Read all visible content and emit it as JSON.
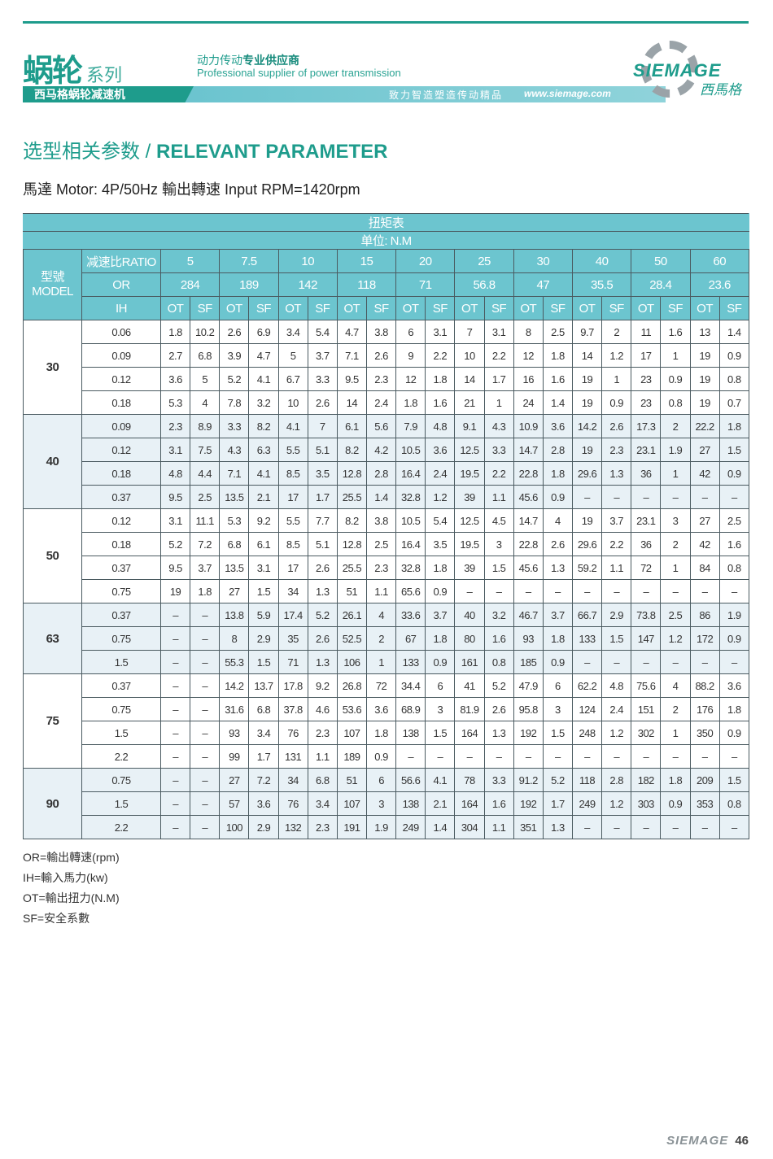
{
  "header": {
    "series_main": "蜗轮",
    "series_sub": "系列",
    "tagline_a": "动力传动",
    "tagline_b": "专业供应商",
    "tagline_en": "Professional supplier of power transmission",
    "product": "西马格蜗轮减速机",
    "slogan": "致力智造塑造传动精品",
    "website": "www.siemage.com",
    "brand": "SIEMAGE",
    "brand_cn": "西馬格",
    "accent": "#1e9c8c"
  },
  "title": {
    "cn": "选型相关参数 / ",
    "en": "RELEVANT PARAMETER"
  },
  "motor": "馬達 Motor: 4P/50Hz  輸出轉速 Input RPM=1420rpm",
  "table": {
    "caption": "扭矩表",
    "unit": "单位: N.M",
    "model_label": "型號 MODEL",
    "ratio_label": "减速比RATIO",
    "or_label": "OR",
    "ih_label": "IH",
    "ot": "OT",
    "sf": "SF",
    "ratios": [
      "5",
      "7.5",
      "10",
      "15",
      "20",
      "25",
      "30",
      "40",
      "50",
      "60"
    ],
    "or": [
      "284",
      "189",
      "142",
      "118",
      "71",
      "56.8",
      "47",
      "35.5",
      "28.4",
      "23.6"
    ],
    "groups": [
      {
        "model": "30",
        "rows": [
          [
            "0.06",
            "1.8",
            "10.2",
            "2.6",
            "6.9",
            "3.4",
            "5.4",
            "4.7",
            "3.8",
            "6",
            "3.1",
            "7",
            "3.1",
            "8",
            "2.5",
            "9.7",
            "2",
            "11",
            "1.6",
            "13",
            "1.4"
          ],
          [
            "0.09",
            "2.7",
            "6.8",
            "3.9",
            "4.7",
            "5",
            "3.7",
            "7.1",
            "2.6",
            "9",
            "2.2",
            "10",
            "2.2",
            "12",
            "1.8",
            "14",
            "1.2",
            "17",
            "1",
            "19",
            "0.9"
          ],
          [
            "0.12",
            "3.6",
            "5",
            "5.2",
            "4.1",
            "6.7",
            "3.3",
            "9.5",
            "2.3",
            "12",
            "1.8",
            "14",
            "1.7",
            "16",
            "1.6",
            "19",
            "1",
            "23",
            "0.9",
            "19",
            "0.8"
          ],
          [
            "0.18",
            "5.3",
            "4",
            "7.8",
            "3.2",
            "10",
            "2.6",
            "14",
            "2.4",
            "1.8",
            "1.6",
            "21",
            "1",
            "24",
            "1.4",
            "19",
            "0.9",
            "23",
            "0.8",
            "19",
            "0.7"
          ]
        ]
      },
      {
        "model": "40",
        "rows": [
          [
            "0.09",
            "2.3",
            "8.9",
            "3.3",
            "8.2",
            "4.1",
            "7",
            "6.1",
            "5.6",
            "7.9",
            "4.8",
            "9.1",
            "4.3",
            "10.9",
            "3.6",
            "14.2",
            "2.6",
            "17.3",
            "2",
            "22.2",
            "1.8"
          ],
          [
            "0.12",
            "3.1",
            "7.5",
            "4.3",
            "6.3",
            "5.5",
            "5.1",
            "8.2",
            "4.2",
            "10.5",
            "3.6",
            "12.5",
            "3.3",
            "14.7",
            "2.8",
            "19",
            "2.3",
            "23.1",
            "1.9",
            "27",
            "1.5"
          ],
          [
            "0.18",
            "4.8",
            "4.4",
            "7.1",
            "4.1",
            "8.5",
            "3.5",
            "12.8",
            "2.8",
            "16.4",
            "2.4",
            "19.5",
            "2.2",
            "22.8",
            "1.8",
            "29.6",
            "1.3",
            "36",
            "1",
            "42",
            "0.9"
          ],
          [
            "0.37",
            "9.5",
            "2.5",
            "13.5",
            "2.1",
            "17",
            "1.7",
            "25.5",
            "1.4",
            "32.8",
            "1.2",
            "39",
            "1.1",
            "45.6",
            "0.9",
            "–",
            "–",
            "–",
            "–",
            "–",
            "–"
          ]
        ]
      },
      {
        "model": "50",
        "rows": [
          [
            "0.12",
            "3.1",
            "11.1",
            "5.3",
            "9.2",
            "5.5",
            "7.7",
            "8.2",
            "3.8",
            "10.5",
            "5.4",
            "12.5",
            "4.5",
            "14.7",
            "4",
            "19",
            "3.7",
            "23.1",
            "3",
            "27",
            "2.5"
          ],
          [
            "0.18",
            "5.2",
            "7.2",
            "6.8",
            "6.1",
            "8.5",
            "5.1",
            "12.8",
            "2.5",
            "16.4",
            "3.5",
            "19.5",
            "3",
            "22.8",
            "2.6",
            "29.6",
            "2.2",
            "36",
            "2",
            "42",
            "1.6"
          ],
          [
            "0.37",
            "9.5",
            "3.7",
            "13.5",
            "3.1",
            "17",
            "2.6",
            "25.5",
            "2.3",
            "32.8",
            "1.8",
            "39",
            "1.5",
            "45.6",
            "1.3",
            "59.2",
            "1.1",
            "72",
            "1",
            "84",
            "0.8"
          ],
          [
            "0.75",
            "19",
            "1.8",
            "27",
            "1.5",
            "34",
            "1.3",
            "51",
            "1.1",
            "65.6",
            "0.9",
            "–",
            "–",
            "–",
            "–",
            "–",
            "–",
            "–",
            "–",
            "–",
            "–"
          ]
        ]
      },
      {
        "model": "63",
        "rows": [
          [
            "0.37",
            "–",
            "–",
            "13.8",
            "5.9",
            "17.4",
            "5.2",
            "26.1",
            "4",
            "33.6",
            "3.7",
            "40",
            "3.2",
            "46.7",
            "3.7",
            "66.7",
            "2.9",
            "73.8",
            "2.5",
            "86",
            "1.9"
          ],
          [
            "0.75",
            "–",
            "–",
            "8",
            "2.9",
            "35",
            "2.6",
            "52.5",
            "2",
            "67",
            "1.8",
            "80",
            "1.6",
            "93",
            "1.8",
            "133",
            "1.5",
            "147",
            "1.2",
            "172",
            "0.9"
          ],
          [
            "1.5",
            "–",
            "–",
            "55.3",
            "1.5",
            "71",
            "1.3",
            "106",
            "1",
            "133",
            "0.9",
            "161",
            "0.8",
            "185",
            "0.9",
            "–",
            "–",
            "–",
            "–",
            "–",
            "–"
          ]
        ]
      },
      {
        "model": "75",
        "rows": [
          [
            "0.37",
            "–",
            "–",
            "14.2",
            "13.7",
            "17.8",
            "9.2",
            "26.8",
            "72",
            "34.4",
            "6",
            "41",
            "5.2",
            "47.9",
            "6",
            "62.2",
            "4.8",
            "75.6",
            "4",
            "88.2",
            "3.6"
          ],
          [
            "0.75",
            "–",
            "–",
            "31.6",
            "6.8",
            "37.8",
            "4.6",
            "53.6",
            "3.6",
            "68.9",
            "3",
            "81.9",
            "2.6",
            "95.8",
            "3",
            "124",
            "2.4",
            "151",
            "2",
            "176",
            "1.8"
          ],
          [
            "1.5",
            "–",
            "–",
            "93",
            "3.4",
            "76",
            "2.3",
            "107",
            "1.8",
            "138",
            "1.5",
            "164",
            "1.3",
            "192",
            "1.5",
            "248",
            "1.2",
            "302",
            "1",
            "350",
            "0.9"
          ],
          [
            "2.2",
            "–",
            "–",
            "99",
            "1.7",
            "131",
            "1.1",
            "189",
            "0.9",
            "–",
            "–",
            "–",
            "–",
            "–",
            "–",
            "–",
            "–",
            "–",
            "–",
            "–",
            "–"
          ]
        ]
      },
      {
        "model": "90",
        "rows": [
          [
            "0.75",
            "–",
            "–",
            "27",
            "7.2",
            "34",
            "6.8",
            "51",
            "6",
            "56.6",
            "4.1",
            "78",
            "3.3",
            "91.2",
            "5.2",
            "118",
            "2.8",
            "182",
            "1.8",
            "209",
            "1.5"
          ],
          [
            "1.5",
            "–",
            "–",
            "57",
            "3.6",
            "76",
            "3.4",
            "107",
            "3",
            "138",
            "2.1",
            "164",
            "1.6",
            "192",
            "1.7",
            "249",
            "1.2",
            "303",
            "0.9",
            "353",
            "0.8"
          ],
          [
            "2.2",
            "–",
            "–",
            "100",
            "2.9",
            "132",
            "2.3",
            "191",
            "1.9",
            "249",
            "1.4",
            "304",
            "1.1",
            "351",
            "1.3",
            "–",
            "–",
            "–",
            "–",
            "–",
            "–"
          ]
        ]
      }
    ]
  },
  "legend": [
    "OR=輸出轉速(rpm)",
    "IH=輸入馬力(kw)",
    "OT=輸出扭力(N.M)",
    "SF=安全系數"
  ],
  "footer": {
    "brand": "SIEMAGE",
    "page": "46"
  }
}
